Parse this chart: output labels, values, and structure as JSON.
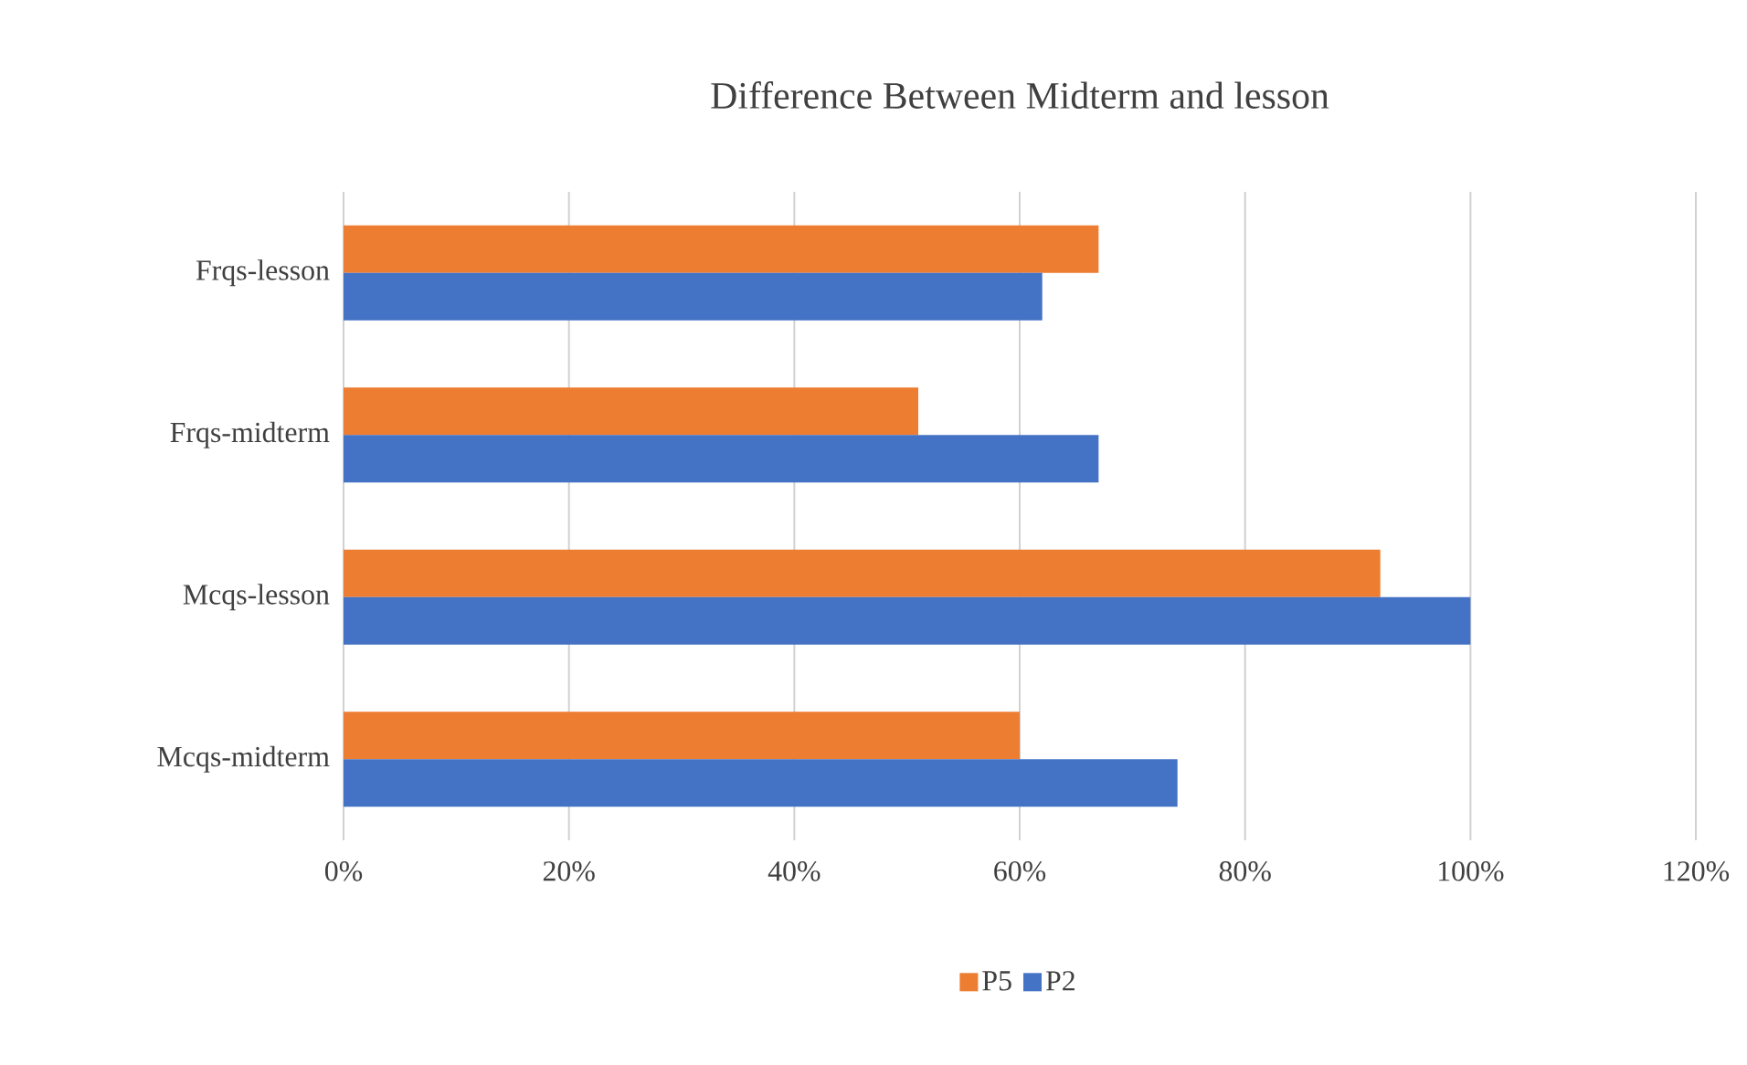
{
  "chart_data": {
    "type": "bar",
    "orientation": "horizontal",
    "title": "Difference Between Midterm and lesson",
    "categories": [
      "Frqs-lesson",
      "Frqs-midterm",
      "Mcqs-lesson",
      "Mcqs-midterm"
    ],
    "series": [
      {
        "name": "P5",
        "color": "#ed7d31",
        "values": [
          67,
          51,
          92,
          60
        ]
      },
      {
        "name": "P2",
        "color": "#4472c4",
        "values": [
          62,
          67,
          100,
          74
        ]
      }
    ],
    "xlim": [
      0,
      120
    ],
    "xticks": [
      {
        "value": 0,
        "label": "0%"
      },
      {
        "value": 20,
        "label": "20%"
      },
      {
        "value": 40,
        "label": "40%"
      },
      {
        "value": 60,
        "label": "60%"
      },
      {
        "value": 80,
        "label": "80%"
      },
      {
        "value": 100,
        "label": "100%"
      },
      {
        "value": 120,
        "label": "120%"
      }
    ],
    "grid": "x",
    "legend": "bottom"
  }
}
